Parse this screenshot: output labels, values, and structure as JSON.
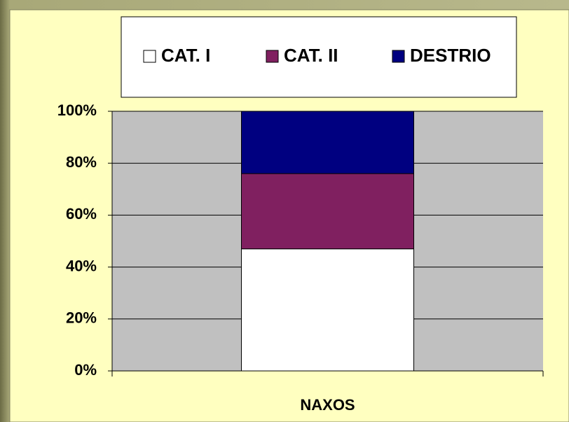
{
  "chart_data": {
    "type": "stacked_bar_100",
    "categories": [
      "NAXOS"
    ],
    "series": [
      {
        "name": "CAT. I",
        "color": "#ffffff",
        "values": [
          47
        ]
      },
      {
        "name": "CAT. II",
        "color": "#802060",
        "values": [
          29
        ]
      },
      {
        "name": "DESTRIO",
        "color": "#000080",
        "values": [
          24
        ]
      }
    ],
    "ylim": [
      0,
      100
    ],
    "yticks": [
      {
        "value": 0,
        "label": "0%"
      },
      {
        "value": 20,
        "label": "20%"
      },
      {
        "value": 40,
        "label": "40%"
      },
      {
        "value": 60,
        "label": "60%"
      },
      {
        "value": 80,
        "label": "80%"
      },
      {
        "value": 100,
        "label": "100%"
      }
    ],
    "grid": true,
    "legend": "top"
  }
}
